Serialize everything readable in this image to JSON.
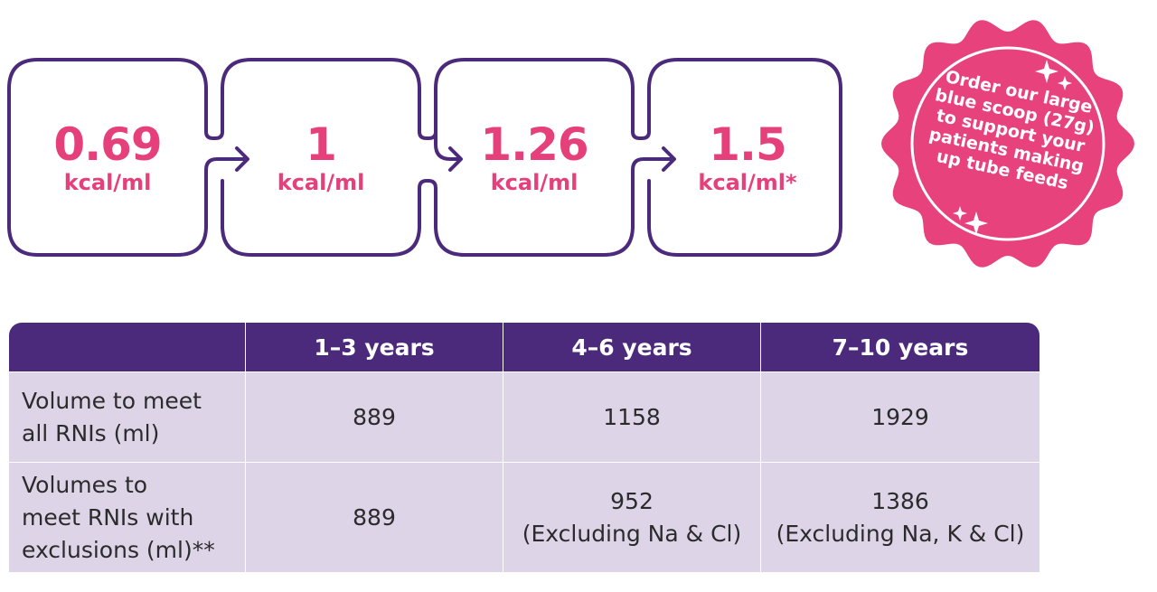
{
  "flow": {
    "steps": [
      {
        "value": "0.69",
        "unit": "kcal/ml"
      },
      {
        "value": "1",
        "unit": "kcal/ml"
      },
      {
        "value": "1.26",
        "unit": "kcal/ml"
      },
      {
        "value": "1.5",
        "unit": "kcal/ml*"
      }
    ]
  },
  "badge": {
    "lines": [
      "Order our large",
      "blue scoop (27g)",
      "to support your",
      "patients making",
      "up tube feeds"
    ]
  },
  "table": {
    "headers": [
      "",
      "1–3 years",
      "4–6 years",
      "7–10 years"
    ],
    "rows": [
      {
        "label_lines": [
          "Volume to meet",
          "all RNIs (ml)"
        ],
        "cells": [
          {
            "value": "889",
            "note": ""
          },
          {
            "value": "1158",
            "note": ""
          },
          {
            "value": "1929",
            "note": ""
          }
        ]
      },
      {
        "label_lines": [
          "Volumes to",
          "meet RNIs with",
          "exclusions (ml)**"
        ],
        "cells": [
          {
            "value": "889",
            "note": ""
          },
          {
            "value": "952",
            "note": "(Excluding Na & Cl)"
          },
          {
            "value": "1386",
            "note": "(Excluding Na, K & Cl)"
          }
        ]
      }
    ]
  },
  "colors": {
    "accent_pink": "#e6407a",
    "purple": "#4b2a7c",
    "table_cell": "#ddd4e8",
    "badge_pink": "#e8427c"
  }
}
